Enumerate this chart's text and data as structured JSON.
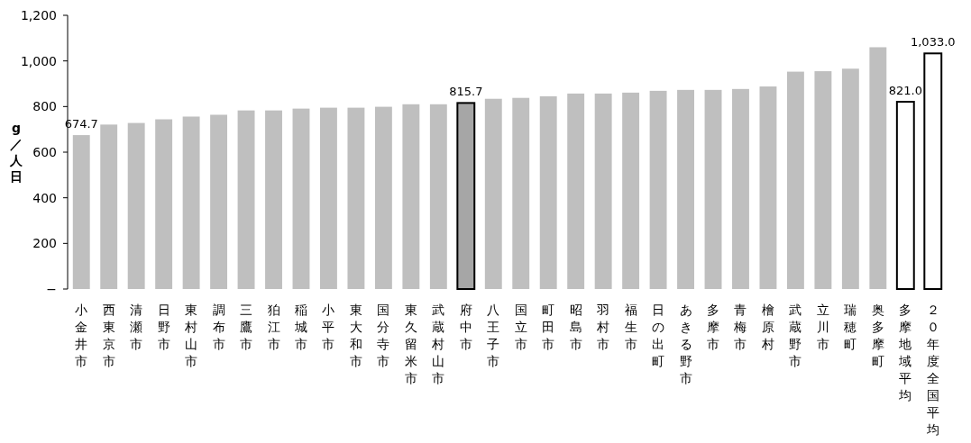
{
  "chart_data": {
    "type": "bar",
    "ylabel": "g／人日",
    "categories": [
      "小金井市",
      "西東京市",
      "清瀬市",
      "日野市",
      "東村山市",
      "調布市",
      "三鷹市",
      "狛江市",
      "稲城市",
      "小平市",
      "東大和市",
      "国分寺市",
      "東久留米市",
      "武蔵村山市",
      "府中市",
      "八王子市",
      "国立市",
      "町田市",
      "昭島市",
      "羽村市",
      "福生市",
      "日の出町",
      "あきる野市",
      "多摩市",
      "青梅市",
      "檜原村",
      "武蔵野市",
      "立川市",
      "瑞穂町",
      "奥多摩町",
      "多摩地域平均",
      "２０年度全国平均"
    ],
    "values": [
      674.7,
      721,
      728,
      744,
      756,
      764,
      783,
      783,
      791,
      795,
      795,
      799,
      810,
      810,
      815.7,
      834,
      838,
      845,
      857,
      857,
      861,
      869,
      873,
      873,
      877,
      888,
      953,
      955,
      966,
      1060,
      821.0,
      1033.0
    ],
    "value_labels": [
      "674.7",
      null,
      null,
      null,
      null,
      null,
      null,
      null,
      null,
      null,
      null,
      null,
      null,
      null,
      "815.7",
      null,
      null,
      null,
      null,
      null,
      null,
      null,
      null,
      null,
      null,
      null,
      null,
      null,
      null,
      null,
      "821.0",
      "1,033.0"
    ],
    "colors": [
      "#bfbfbf",
      "#bfbfbf",
      "#bfbfbf",
      "#bfbfbf",
      "#bfbfbf",
      "#bfbfbf",
      "#bfbfbf",
      "#bfbfbf",
      "#bfbfbf",
      "#bfbfbf",
      "#bfbfbf",
      "#bfbfbf",
      "#bfbfbf",
      "#bfbfbf",
      "#a6a6a6",
      "#bfbfbf",
      "#bfbfbf",
      "#bfbfbf",
      "#bfbfbf",
      "#bfbfbf",
      "#bfbfbf",
      "#bfbfbf",
      "#bfbfbf",
      "#bfbfbf",
      "#bfbfbf",
      "#bfbfbf",
      "#bfbfbf",
      "#bfbfbf",
      "#bfbfbf",
      "#bfbfbf",
      "#ffffff",
      "#ffffff"
    ],
    "ylim": [
      0,
      1200
    ],
    "yticks": [
      {
        "value": 0,
        "label": "−"
      },
      {
        "value": 200,
        "label": "200"
      },
      {
        "value": 400,
        "label": "400"
      },
      {
        "value": 600,
        "label": "600"
      },
      {
        "value": 800,
        "label": "800"
      },
      {
        "value": 1000,
        "label": "1,000"
      },
      {
        "value": 1200,
        "label": "1,200"
      }
    ],
    "grid": false
  }
}
